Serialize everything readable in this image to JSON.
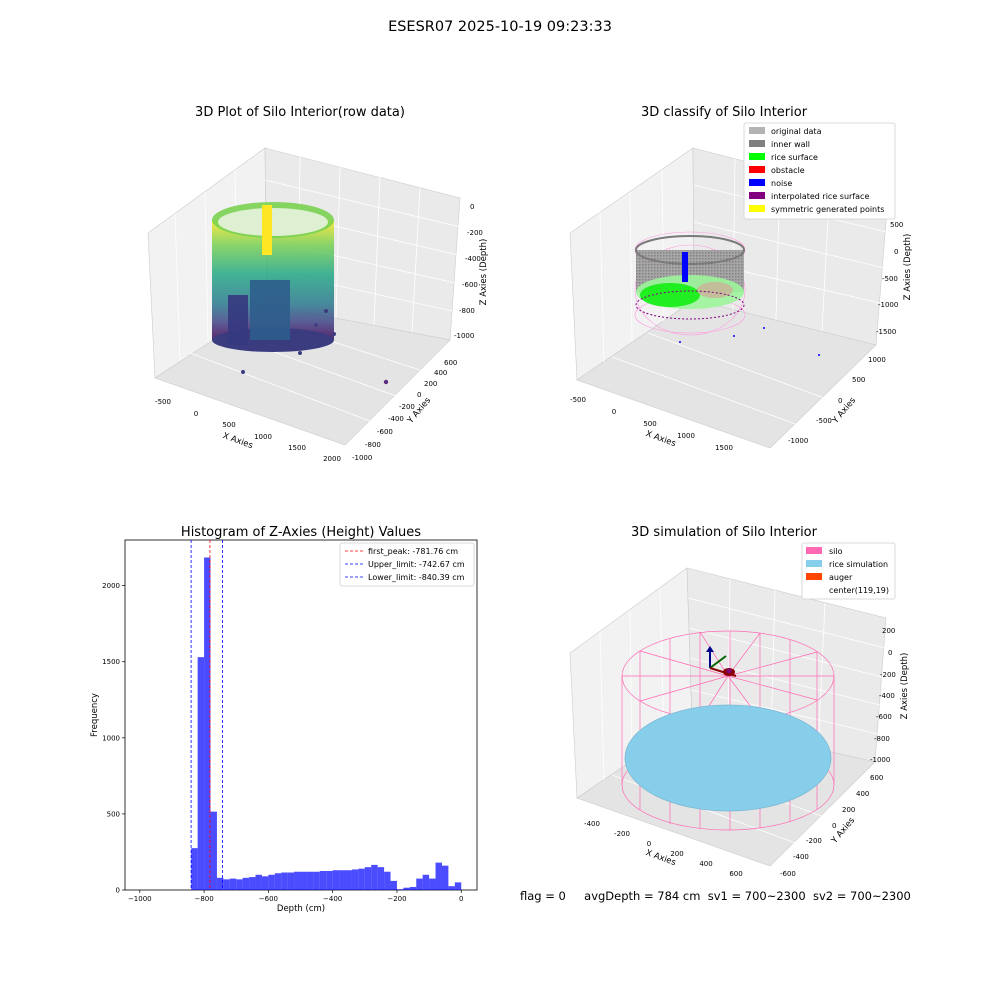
{
  "figure": {
    "suptitle": "ESESR07 2025-10-19 09:23:33"
  },
  "footer": {
    "flag": "flag = 0",
    "avg_depth": "avgDepth = 784 cm",
    "sv1": "sv1 = 700~2300",
    "sv2": "sv2 = 700~2300"
  },
  "chart_data": [
    {
      "type": "scatter3d",
      "title": "3D Plot of Silo Interior(row data)",
      "xlabel": "X Axies",
      "ylabel": "Y Axies",
      "zlabel": "Z Axies (Depth)",
      "x_ticks": [
        "-500",
        "0",
        "500",
        "1000",
        "1500",
        "2000"
      ],
      "y_ticks": [
        "-1000",
        "-800",
        "-600",
        "-400",
        "-200",
        "0",
        "200",
        "400",
        "600"
      ],
      "z_ticks": [
        "0",
        "-200",
        "-400",
        "-600",
        "-800",
        "-1000"
      ],
      "colormap": "viridis"
    },
    {
      "type": "scatter3d",
      "title": "3D classify of Silo Interior",
      "xlabel": "X Axies",
      "ylabel": "Y Axies",
      "zlabel": "Z Axies (Depth)",
      "x_ticks": [
        "-500",
        "0",
        "500",
        "1000",
        "1500"
      ],
      "y_ticks": [
        "-1000",
        "-500",
        "0",
        "500",
        "1000"
      ],
      "z_ticks": [
        "500",
        "0",
        "-500",
        "-1000",
        "-1500"
      ],
      "legend_position": "top-right",
      "legend": [
        {
          "label": "original data",
          "color": "#b3b3b3"
        },
        {
          "label": "inner wall",
          "color": "#808080"
        },
        {
          "label": "rice surface",
          "color": "#00ff00"
        },
        {
          "label": "obstacle",
          "color": "#ff0000"
        },
        {
          "label": "noise",
          "color": "#0000ff"
        },
        {
          "label": "interpolated rice surface",
          "color": "#800080"
        },
        {
          "label": "symmetric generated points",
          "color": "#ffff00"
        }
      ]
    },
    {
      "type": "bar",
      "title": "Histogram of Z-Axies (Height) Values",
      "xlabel": "Depth (cm)",
      "ylabel": "Frequency",
      "xlim": [
        -1000,
        0
      ],
      "ylim": [
        0,
        2300
      ],
      "x_ticks": [
        -1000,
        -800,
        -600,
        -400,
        -200,
        0
      ],
      "y_ticks": [
        0,
        500,
        1000,
        1500,
        2000
      ],
      "bar_color": "#0000ff",
      "bin_width": 20,
      "bins": [
        {
          "start": -840,
          "count": 275
        },
        {
          "start": -820,
          "count": 1530
        },
        {
          "start": -800,
          "count": 2185
        },
        {
          "start": -780,
          "count": 515
        },
        {
          "start": -760,
          "count": 80
        },
        {
          "start": -740,
          "count": 70
        },
        {
          "start": -720,
          "count": 75
        },
        {
          "start": -700,
          "count": 70
        },
        {
          "start": -680,
          "count": 80
        },
        {
          "start": -660,
          "count": 85
        },
        {
          "start": -640,
          "count": 100
        },
        {
          "start": -620,
          "count": 90
        },
        {
          "start": -600,
          "count": 100
        },
        {
          "start": -580,
          "count": 110
        },
        {
          "start": -560,
          "count": 115
        },
        {
          "start": -540,
          "count": 115
        },
        {
          "start": -520,
          "count": 120
        },
        {
          "start": -500,
          "count": 120
        },
        {
          "start": -480,
          "count": 120
        },
        {
          "start": -460,
          "count": 120
        },
        {
          "start": -440,
          "count": 125
        },
        {
          "start": -420,
          "count": 125
        },
        {
          "start": -400,
          "count": 130
        },
        {
          "start": -380,
          "count": 130
        },
        {
          "start": -360,
          "count": 130
        },
        {
          "start": -340,
          "count": 135
        },
        {
          "start": -320,
          "count": 140
        },
        {
          "start": -300,
          "count": 150
        },
        {
          "start": -280,
          "count": 165
        },
        {
          "start": -260,
          "count": 150
        },
        {
          "start": -240,
          "count": 120
        },
        {
          "start": -220,
          "count": 60
        },
        {
          "start": -200,
          "count": 5
        },
        {
          "start": -180,
          "count": 15
        },
        {
          "start": -160,
          "count": 20
        },
        {
          "start": -140,
          "count": 75
        },
        {
          "start": -120,
          "count": 100
        },
        {
          "start": -100,
          "count": 75
        },
        {
          "start": -80,
          "count": 180
        },
        {
          "start": -60,
          "count": 160
        },
        {
          "start": -40,
          "count": 25
        },
        {
          "start": -20,
          "count": 50
        }
      ],
      "lines": [
        {
          "label": "first_peak: -781.76 cm",
          "x": -781.76,
          "color": "#ff0000"
        },
        {
          "label": "Upper_limit: -742.67 cm",
          "x": -742.67,
          "color": "#0000ff"
        },
        {
          "label": "Lower_limit: -840.39 cm",
          "x": -840.39,
          "color": "#0000ff"
        }
      ],
      "legend_position": "top-right"
    },
    {
      "type": "surface3d",
      "title": "3D simulation of Silo Interior",
      "xlabel": "X Axies",
      "ylabel": "Y Axies",
      "zlabel": "Z Axies (Depth)",
      "x_ticks": [
        "-400",
        "-200",
        "0",
        "200",
        "400",
        "600"
      ],
      "y_ticks": [
        "-600",
        "-400",
        "-200",
        "0",
        "200",
        "400",
        "600"
      ],
      "z_ticks": [
        "200",
        "0",
        "-200",
        "-400",
        "-600",
        "-800",
        "-1000"
      ],
      "legend_position": "top-right",
      "legend": [
        {
          "label": "silo",
          "color": "#ff69b4"
        },
        {
          "label": "rice simulation",
          "color": "#87ceeb"
        },
        {
          "label": "auger",
          "color": "#ff4500"
        },
        {
          "label": "center(119,19)",
          "color": "none"
        }
      ]
    }
  ]
}
